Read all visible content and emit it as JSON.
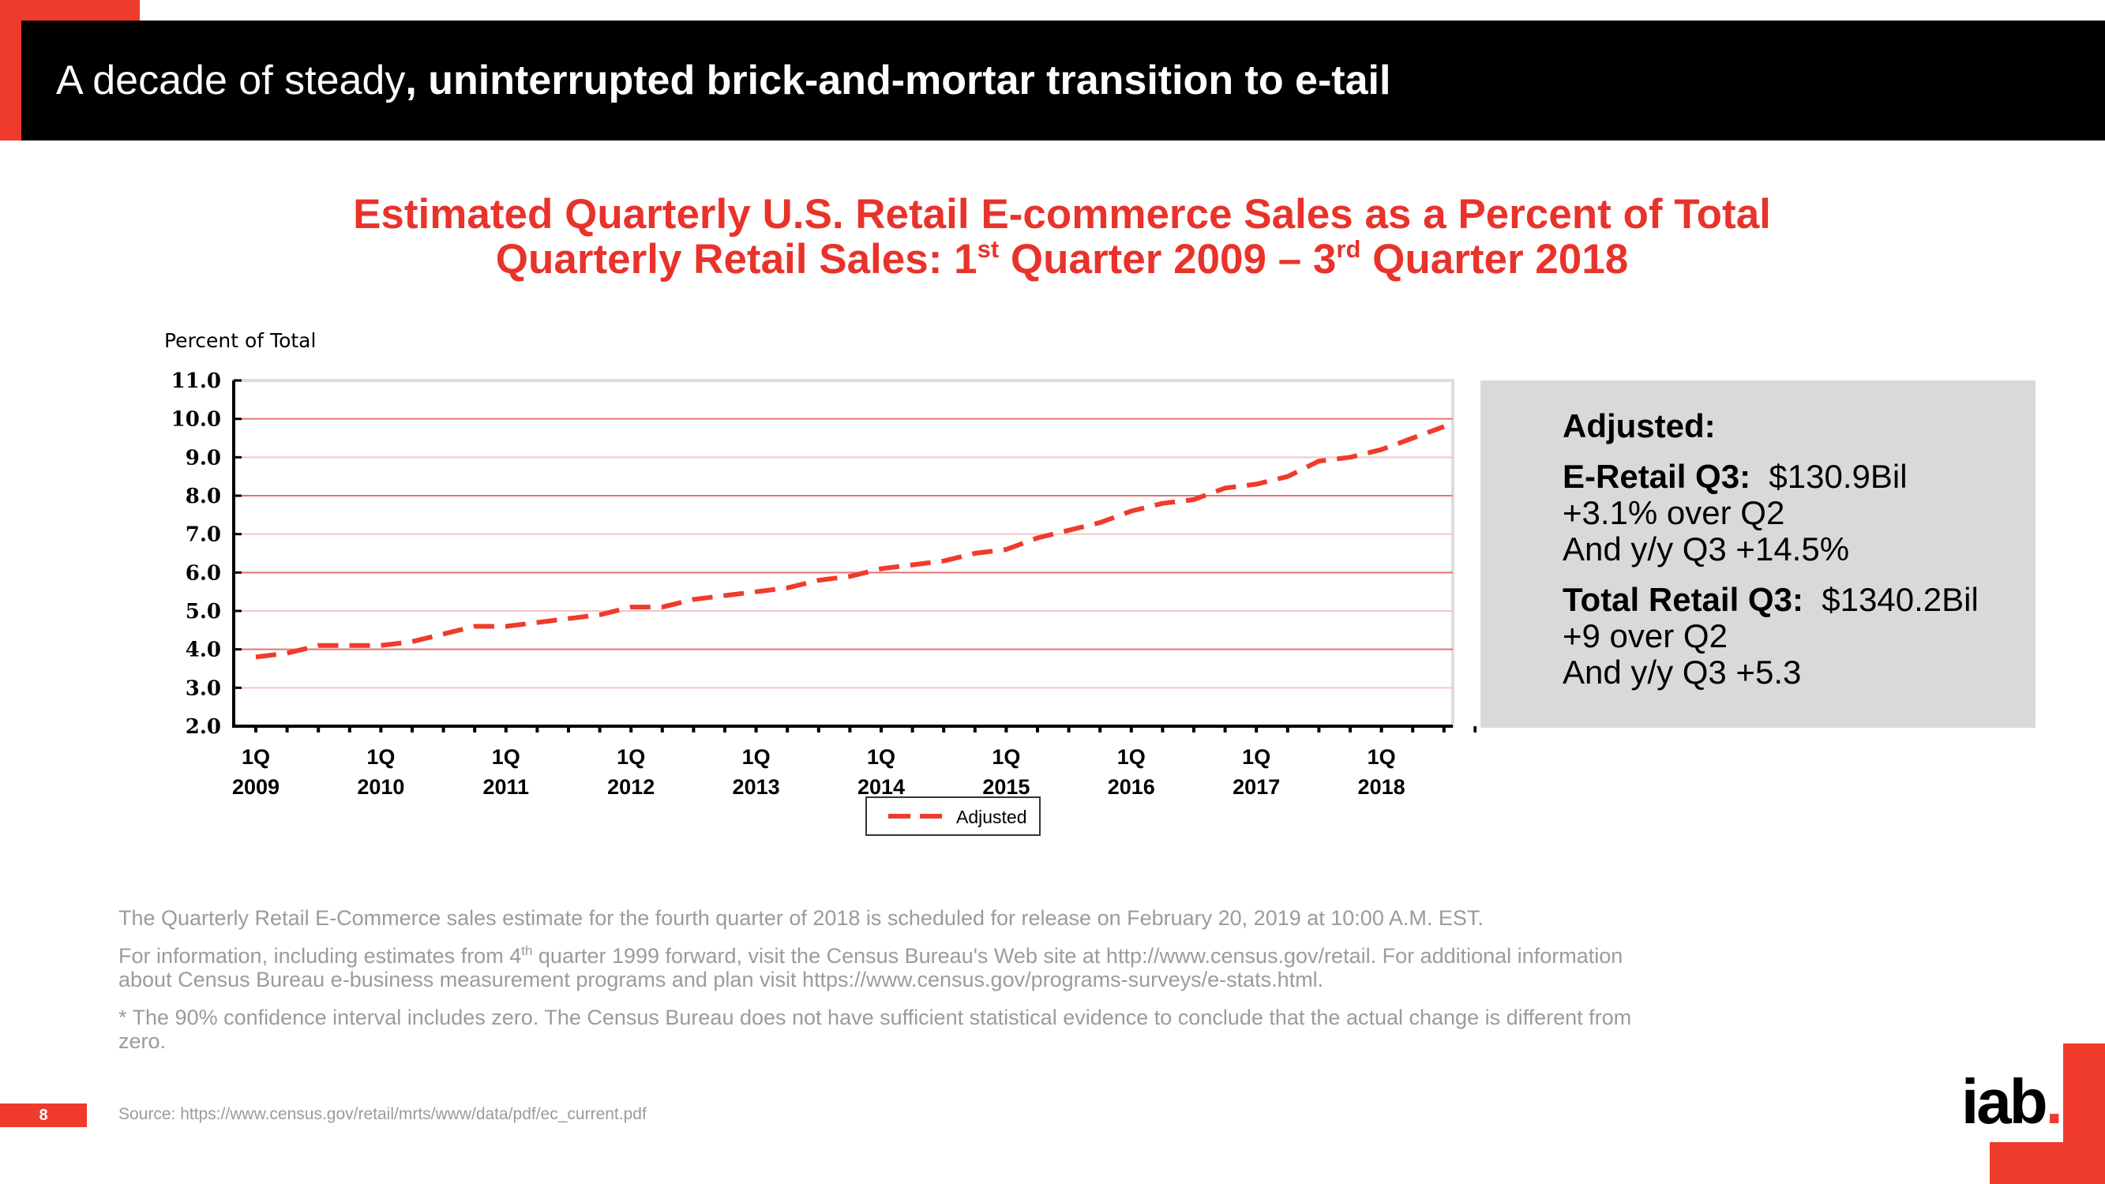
{
  "header": {
    "title_regular": "A decade of steady",
    "title_bold": ", uninterrupted brick-and-mortar transition to e-tail"
  },
  "chart_heading": {
    "line1": "Estimated Quarterly U.S. Retail E-commerce Sales as a Percent of Total",
    "line2_a": "Quarterly Retail Sales: 1",
    "line2_sup1": "st",
    "line2_b": " Quarter 2009 – 3",
    "line2_sup2": "rd",
    "line2_c": " Quarter 2018"
  },
  "chart_data": {
    "type": "line",
    "ylabel": "Percent of Total",
    "ylim": [
      2.0,
      11.0
    ],
    "yticks": [
      "2.0",
      "3.0",
      "4.0",
      "5.0",
      "6.0",
      "7.0",
      "8.0",
      "9.0",
      "10.0",
      "11.0"
    ],
    "xtick_labels": [
      [
        "1Q",
        "2009"
      ],
      [
        "1Q",
        "2010"
      ],
      [
        "1Q",
        "2011"
      ],
      [
        "1Q",
        "2012"
      ],
      [
        "1Q",
        "2013"
      ],
      [
        "1Q",
        "2014"
      ],
      [
        "1Q",
        "2015"
      ],
      [
        "1Q",
        "2016"
      ],
      [
        "1Q",
        "2017"
      ],
      [
        "1Q",
        "2018"
      ]
    ],
    "x": [
      "1Q 2009",
      "2Q 2009",
      "3Q 2009",
      "4Q 2009",
      "1Q 2010",
      "2Q 2010",
      "3Q 2010",
      "4Q 2010",
      "1Q 2011",
      "2Q 2011",
      "3Q 2011",
      "4Q 2011",
      "1Q 2012",
      "2Q 2012",
      "3Q 2012",
      "4Q 2012",
      "1Q 2013",
      "2Q 2013",
      "3Q 2013",
      "4Q 2013",
      "1Q 2014",
      "2Q 2014",
      "3Q 2014",
      "4Q 2014",
      "1Q 2015",
      "2Q 2015",
      "3Q 2015",
      "4Q 2015",
      "1Q 2016",
      "2Q 2016",
      "3Q 2016",
      "4Q 2016",
      "1Q 2017",
      "2Q 2017",
      "3Q 2017",
      "4Q 2017",
      "1Q 2018",
      "2Q 2018",
      "3Q 2018"
    ],
    "series": [
      {
        "name": "Adjusted",
        "color": "#ef3b2c",
        "values": [
          3.8,
          3.9,
          4.1,
          4.1,
          4.1,
          4.2,
          4.4,
          4.6,
          4.6,
          4.7,
          4.8,
          4.9,
          5.1,
          5.1,
          5.3,
          5.4,
          5.5,
          5.6,
          5.8,
          5.9,
          6.1,
          6.2,
          6.3,
          6.5,
          6.6,
          6.9,
          7.1,
          7.3,
          7.6,
          7.8,
          7.9,
          8.2,
          8.3,
          8.5,
          8.9,
          9.0,
          9.2,
          9.5,
          9.8
        ]
      }
    ],
    "grid": true,
    "legend_position": "bottom-center",
    "legend_label": "Adjusted"
  },
  "info_box": {
    "heading": "Adjusted:",
    "eretail_label": "E-Retail Q3:",
    "eretail_value": "$130.9Bil",
    "eretail_line2": "+3.1% over Q2",
    "eretail_line3": "And y/y Q3 +14.5%",
    "total_label": "Total Retail Q3:",
    "total_value": "$1340.2Bil",
    "total_line2": "+9 over Q2",
    "total_line3": "And y/y Q3 +5.3"
  },
  "notes": {
    "note1": "The Quarterly Retail E-Commerce sales estimate for the fourth quarter of 2018 is scheduled for release on February 20, 2019 at 10:00 A.M. EST.",
    "note2_a": "For information, including estimates from 4",
    "note2_sup": "th",
    "note2_b": " quarter 1999 forward, visit the Census Bureau's Web site at http://www.census.gov/retail. For additional information about Census Bureau e-business measurement programs and plan visit https://www.census.gov/programs-surveys/e-stats.html.",
    "note3": "* The 90% confidence interval includes zero. The Census Bureau does not have sufficient statistical evidence to conclude that the actual change is different from zero."
  },
  "footer": {
    "page_number": "8",
    "source": "Source: https://www.census.gov/retail/mrts/www/data/pdf/ec_current.pdf",
    "logo_text": "iab",
    "logo_dot": "."
  },
  "colors": {
    "accent": "#ef3b2c",
    "title_red": "#e8332b",
    "grid_red": "#f08080",
    "notes_gray": "#9b9b9b",
    "box_gray": "#d9d9d9"
  }
}
